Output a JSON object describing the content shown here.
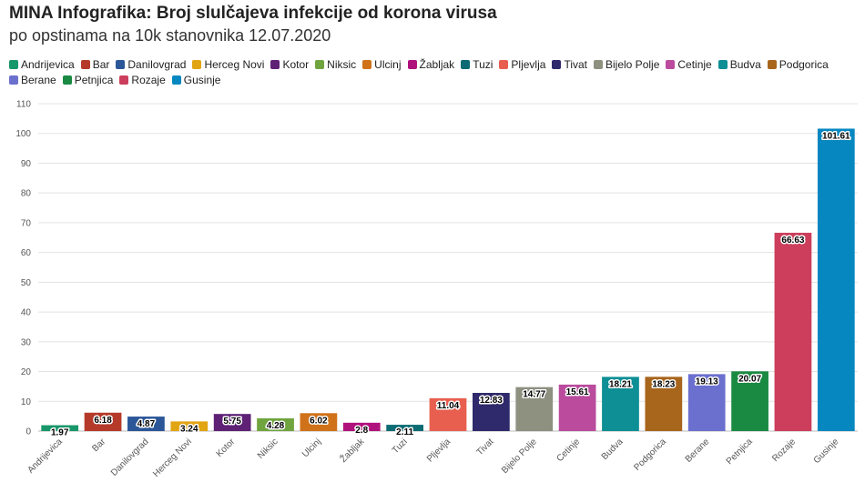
{
  "chart_data": {
    "type": "bar",
    "title": "MINA Infografika: Broj slulčajeva infekcije od korona virusa",
    "subtitle": "po opstinama na 10k stanovnika 12.07.2020",
    "xlabel": "",
    "ylabel": "",
    "ylim": [
      0,
      110
    ],
    "yticks": [
      0,
      10,
      20,
      30,
      40,
      50,
      60,
      70,
      80,
      90,
      100,
      110
    ],
    "grid": true,
    "legend_position": "top",
    "categories": [
      "Andrijevica",
      "Bar",
      "Danilovgrad",
      "Herceg Novi",
      "Kotor",
      "Niksic",
      "Ulcinj",
      "Žabljak",
      "Tuzi",
      "Pljevlja",
      "Tivat",
      "Bijelo Polje",
      "Cetinje",
      "Budva",
      "Podgorica",
      "Berane",
      "Petnjica",
      "Rozaje",
      "Gusinje"
    ],
    "values": [
      1.97,
      6.18,
      4.87,
      3.24,
      5.75,
      4.28,
      6.02,
      2.8,
      2.11,
      11.04,
      12.83,
      14.77,
      15.61,
      18.21,
      18.23,
      19.13,
      20.07,
      66.63,
      101.61
    ],
    "value_labels": [
      "1.97",
      "6.18",
      "4.87",
      "3.24",
      "5.75",
      "4.28",
      "6.02",
      "2.8",
      "2.11",
      "11.04",
      "12.83",
      "14.77",
      "15.61",
      "18.21",
      "18.23",
      "19.13",
      "20.07",
      "66.63",
      "101.61"
    ],
    "colors": [
      "#18976b",
      "#b53a2a",
      "#2b5698",
      "#e1a412",
      "#5e2175",
      "#6fa43e",
      "#d07219",
      "#b0127d",
      "#0c6b73",
      "#e85f4f",
      "#2e2a6b",
      "#8e9080",
      "#ba4b9d",
      "#0d8f95",
      "#a8651c",
      "#6b6fce",
      "#1a8a42",
      "#cc3e5c",
      "#0787c0"
    ]
  }
}
